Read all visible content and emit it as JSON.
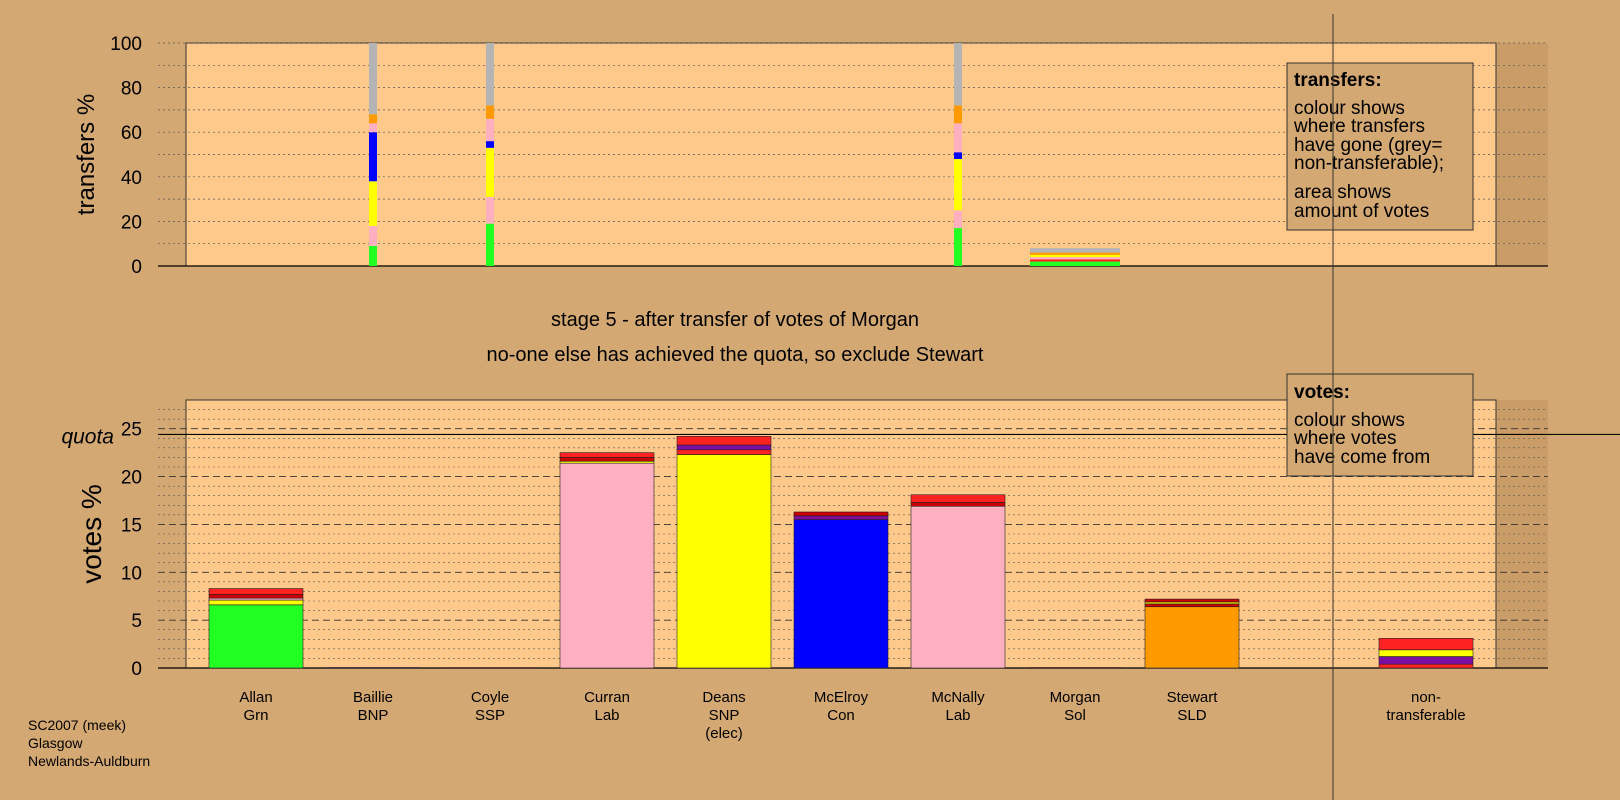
{
  "chart_data": {
    "type": "bar",
    "title_lines": [
      "stage 5 - after transfer of votes of Morgan",
      "no-one else has achieved the quota, so exclude Stewart"
    ],
    "footer_lines": [
      "SC2007 (meek)",
      "Glasgow",
      "Newlands-Auldburn"
    ],
    "colors": {
      "Grn": "#22ff22",
      "SSP": "#ff2222",
      "Lab": "#ffb0c0",
      "SNP": "#ffff00",
      "Con": "#0000ff",
      "Sol": "#cc0000",
      "SLD": "#ff9900",
      "BNP": "#7b0ea0",
      "nontransferable": "#b4b4b4"
    },
    "transfers_panel": {
      "ylabel": "transfers %",
      "ylim": [
        0,
        100
      ],
      "yticks": [
        0,
        20,
        40,
        60,
        80,
        100
      ],
      "columns": [
        {
          "candidate": "Baillie",
          "segments": [
            {
              "party": "Grn",
              "value": 9
            },
            {
              "party": "Lab",
              "value": 9
            },
            {
              "party": "SNP",
              "value": 20
            },
            {
              "party": "Con",
              "value": 22
            },
            {
              "party": "Lab",
              "value": 4
            },
            {
              "party": "SLD",
              "value": 4
            },
            {
              "party": "nontransferable",
              "value": 32
            }
          ]
        },
        {
          "candidate": "Coyle",
          "segments": [
            {
              "party": "Grn",
              "value": 19
            },
            {
              "party": "Lab",
              "value": 12
            },
            {
              "party": "SNP",
              "value": 22
            },
            {
              "party": "Con",
              "value": 3
            },
            {
              "party": "Lab",
              "value": 10
            },
            {
              "party": "SLD",
              "value": 6
            },
            {
              "party": "nontransferable",
              "value": 28
            }
          ]
        },
        {
          "candidate": "Morgan",
          "segments": [
            {
              "party": "Grn",
              "value": 2
            },
            {
              "party": "SSP",
              "value": 1
            },
            {
              "party": "Lab",
              "value": 1
            },
            {
              "party": "SNP",
              "value": 1
            },
            {
              "party": "SLD",
              "value": 1
            },
            {
              "party": "nontransferable",
              "value": 2
            }
          ]
        },
        {
          "candidate": "McNally",
          "segments": [
            {
              "party": "Grn",
              "value": 17
            },
            {
              "party": "Lab",
              "value": 8
            },
            {
              "party": "SNP",
              "value": 23
            },
            {
              "party": "Con",
              "value": 3
            },
            {
              "party": "Lab",
              "value": 13
            },
            {
              "party": "SLD",
              "value": 8
            },
            {
              "party": "nontransferable",
              "value": 28
            }
          ]
        }
      ],
      "legend": {
        "heading": "transfers:",
        "lines": [
          "colour shows",
          "where transfers",
          "have gone (grey=",
          "non-transferable);",
          "area shows",
          "amount of votes"
        ]
      }
    },
    "votes_panel": {
      "ylabel": "votes %",
      "ylim": [
        0,
        28
      ],
      "yticks": [
        0,
        5,
        10,
        15,
        20,
        25
      ],
      "quota": 24.4,
      "quota_label": "quota",
      "categories": [
        {
          "name": "Allan",
          "party": "Grn",
          "elected": "",
          "segments": [
            {
              "party": "Grn",
              "value": 6.6
            },
            {
              "party": "SNP",
              "value": 0.5
            },
            {
              "party": "Lab",
              "value": 0.2
            },
            {
              "party": "Sol",
              "value": 0.4
            },
            {
              "party": "SSP",
              "value": 0.6
            }
          ]
        },
        {
          "name": "Baillie",
          "party": "BNP",
          "elected": "",
          "segments": [
            {
              "party": "BNP",
              "value": 0.05
            }
          ]
        },
        {
          "name": "Coyle",
          "party": "SSP",
          "elected": "",
          "segments": [
            {
              "party": "SSP",
              "value": 0.05
            }
          ]
        },
        {
          "name": "Curran",
          "party": "Lab",
          "elected": "",
          "segments": [
            {
              "party": "Lab",
              "value": 21.4
            },
            {
              "party": "SNP",
              "value": 0.2
            },
            {
              "party": "Sol",
              "value": 0.4
            },
            {
              "party": "SSP",
              "value": 0.5
            }
          ]
        },
        {
          "name": "Deans",
          "party": "SNP",
          "elected": "(elec)",
          "segments": [
            {
              "party": "SNP",
              "value": 22.3
            },
            {
              "party": "SSP",
              "value": 0.5
            },
            {
              "party": "BNP",
              "value": 0.5
            },
            {
              "party": "SSP",
              "value": 0.9
            }
          ]
        },
        {
          "name": "McElroy",
          "party": "Con",
          "elected": "",
          "segments": [
            {
              "party": "Con",
              "value": 15.5
            },
            {
              "party": "BNP",
              "value": 0.4
            },
            {
              "party": "Sol",
              "value": 0.4
            }
          ]
        },
        {
          "name": "McNally",
          "party": "Lab",
          "elected": "",
          "segments": [
            {
              "party": "Lab",
              "value": 16.9
            },
            {
              "party": "Sol",
              "value": 0.4
            },
            {
              "party": "SSP",
              "value": 0.8
            }
          ]
        },
        {
          "name": "Morgan",
          "party": "Sol",
          "elected": "",
          "segments": [
            {
              "party": "Sol",
              "value": 0.05
            }
          ]
        },
        {
          "name": "Stewart",
          "party": "SLD",
          "elected": "",
          "segments": [
            {
              "party": "SLD",
              "value": 6.4
            },
            {
              "party": "Sol",
              "value": 0.3
            },
            {
              "party": "SNP",
              "value": 0.2
            },
            {
              "party": "Sol",
              "value": 0.3
            }
          ]
        }
      ],
      "nontransferable": {
        "name": "non-",
        "name2": "transferable",
        "segments": [
          {
            "party": "SSP",
            "value": 0.4
          },
          {
            "party": "BNP",
            "value": 0.8
          },
          {
            "party": "SNP",
            "value": 0.7
          },
          {
            "party": "SSP",
            "value": 1.2
          }
        ]
      },
      "legend": {
        "heading": "votes:",
        "lines": [
          "colour shows",
          "where votes",
          "have come from"
        ]
      }
    }
  }
}
